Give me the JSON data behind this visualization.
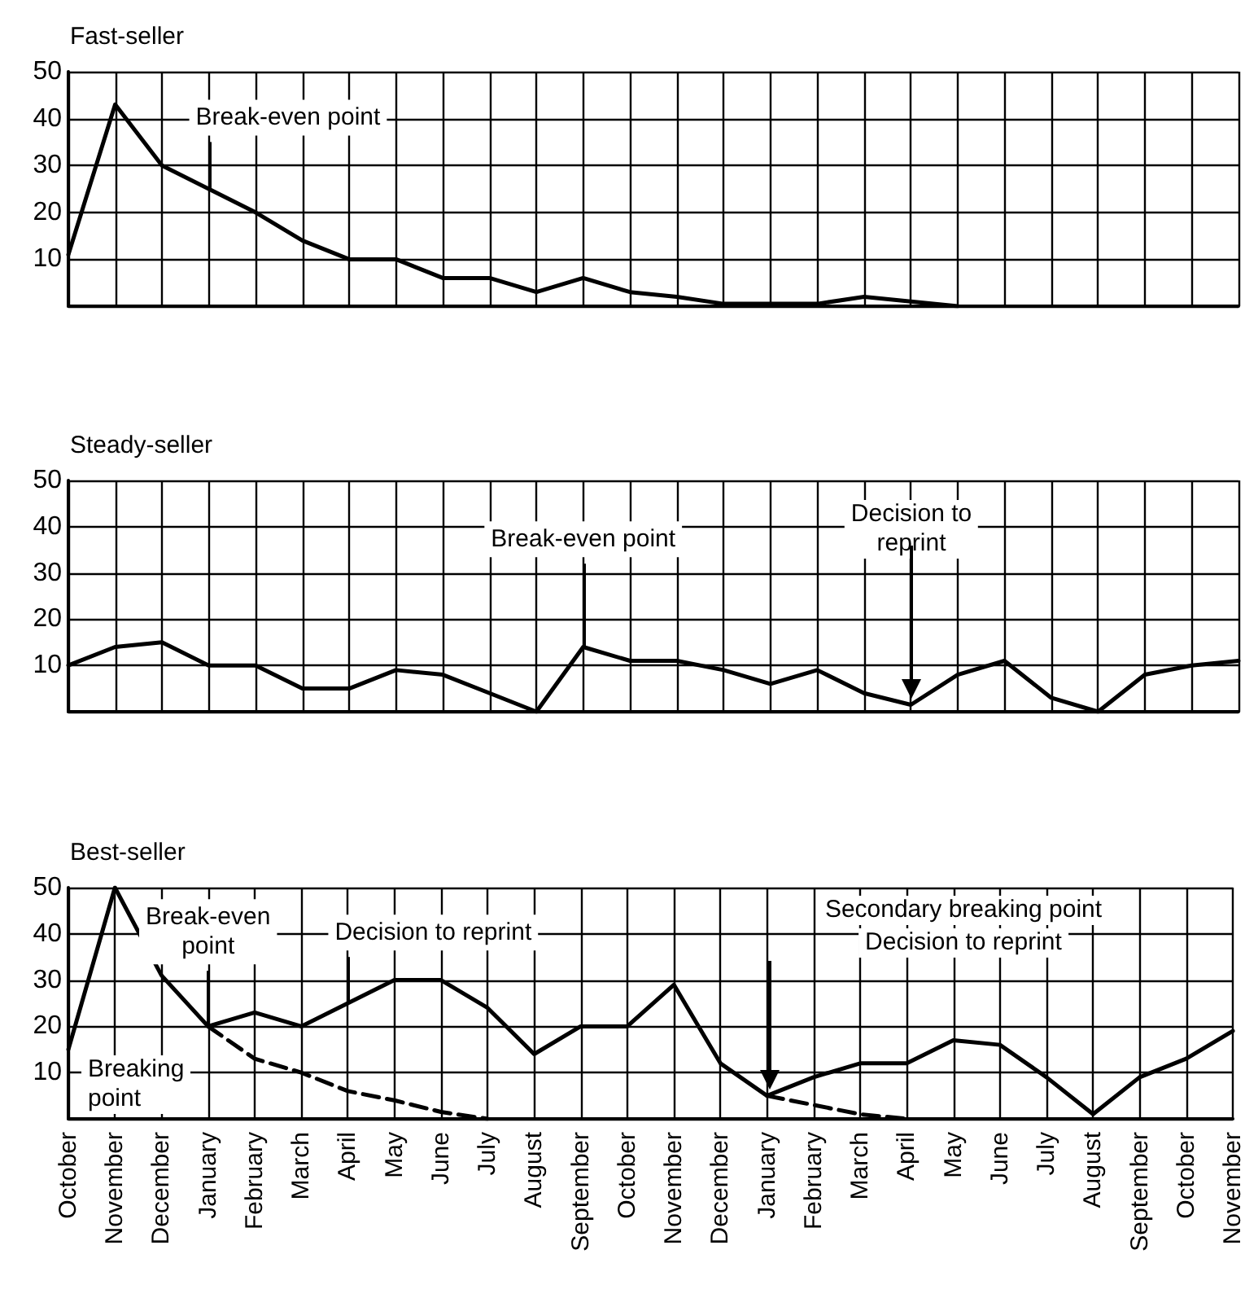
{
  "chart_data": [
    {
      "type": "line",
      "title": "Fast-seller",
      "categories": [
        "October",
        "November",
        "December",
        "January",
        "February",
        "March",
        "April",
        "May",
        "June",
        "July",
        "August",
        "September",
        "October",
        "November",
        "December",
        "January",
        "February",
        "March",
        "April",
        "May",
        "June",
        "July",
        "August",
        "September",
        "October",
        "November"
      ],
      "series": [
        {
          "color": "#000000",
          "values": [
            11,
            43,
            30,
            25,
            20,
            14,
            10,
            10,
            6,
            6,
            3,
            6,
            3,
            2,
            0.5,
            0.5,
            0.5,
            2,
            1,
            0,
            null,
            null,
            null,
            null,
            null,
            null
          ]
        }
      ],
      "annotations": [
        {
          "text": "Break-even point",
          "x": "January",
          "y": 25
        }
      ],
      "ylim": [
        0,
        50
      ],
      "yticks": [
        10,
        20,
        30,
        40,
        50
      ],
      "grid": true,
      "marker": "none",
      "line_style": "solid",
      "tick_labels": "y"
    },
    {
      "type": "line",
      "title": "Steady-seller",
      "categories": [
        "October",
        "November",
        "December",
        "January",
        "February",
        "March",
        "April",
        "May",
        "June",
        "July",
        "August",
        "September",
        "October",
        "November",
        "December",
        "January",
        "February",
        "March",
        "April",
        "May",
        "June",
        "July",
        "August",
        "September",
        "October",
        "November"
      ],
      "series": [
        {
          "color": "#000000",
          "values": [
            10,
            14,
            15,
            10,
            10,
            5,
            5,
            9,
            8,
            4,
            0,
            14,
            11,
            11,
            9,
            6,
            9,
            4,
            1.5,
            8,
            11,
            3,
            0,
            8,
            10,
            11
          ]
        }
      ],
      "annotations": [
        {
          "text": "Break-even point",
          "x": "September",
          "y": 14
        },
        "Decision to reprint"
      ],
      "ylim": [
        0,
        50
      ],
      "yticks": [
        10,
        20,
        30,
        40,
        50
      ],
      "grid": true,
      "marker": "none",
      "line_style": "solid",
      "tick_labels": "y"
    },
    {
      "type": "line",
      "title": "Best-seller",
      "categories": [
        "October",
        "November",
        "December",
        "January",
        "February",
        "March",
        "April",
        "May",
        "June",
        "July",
        "August",
        "September",
        "October",
        "November",
        "December",
        "January",
        "February",
        "March",
        "April",
        "May",
        "June",
        "July",
        "August",
        "September",
        "October",
        "November"
      ],
      "series": [
        {
          "color": "#000000",
          "line_style": "solid",
          "values": [
            15,
            50,
            31,
            20,
            23,
            20,
            25,
            30,
            30,
            24,
            14,
            20,
            20,
            29,
            12,
            5,
            9,
            12,
            12,
            17,
            16,
            9,
            1,
            9,
            13,
            19
          ]
        },
        {
          "color": "#000000",
          "line_style": "dashed",
          "values": [
            null,
            null,
            null,
            20,
            13,
            10,
            6,
            4,
            1.5,
            0,
            null,
            null,
            null,
            null,
            null,
            null,
            null,
            null,
            null,
            null,
            null,
            null,
            null,
            null,
            null,
            null
          ]
        },
        {
          "color": "#000000",
          "line_style": "dashed",
          "values": [
            null,
            null,
            null,
            null,
            null,
            null,
            null,
            null,
            null,
            null,
            null,
            null,
            null,
            null,
            null,
            5,
            3,
            1,
            0,
            null,
            null,
            null,
            null,
            null,
            null,
            null
          ]
        }
      ],
      "annotations": [
        {
          "text": "Break-even point",
          "x": "January",
          "y": 20
        },
        {
          "text": "Decision to reprint",
          "x": "April",
          "y": 25
        },
        "Breaking point",
        "Secondary breaking point",
        "Decision to reprint"
      ],
      "ylim": [
        0,
        50
      ],
      "yticks": [
        10,
        20,
        30,
        40,
        50
      ],
      "grid": true,
      "marker": "none"
    }
  ]
}
